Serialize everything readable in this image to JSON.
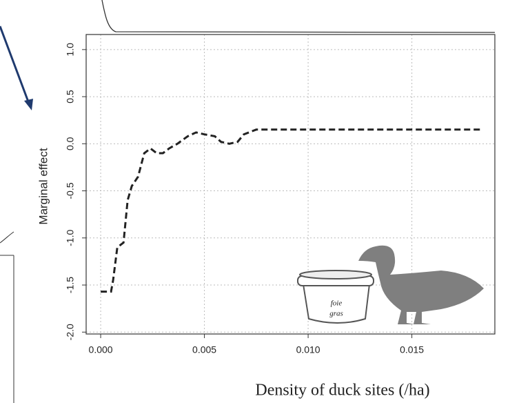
{
  "chart_data": {
    "type": "line",
    "x_label": "Density of duck sites (/ha)",
    "y_label": "Marginal effect",
    "x": [
      0.0,
      0.0005,
      0.0006,
      0.0008,
      0.0011,
      0.0013,
      0.0015,
      0.0018,
      0.0021,
      0.0024,
      0.0027,
      0.003,
      0.0033,
      0.0037,
      0.0042,
      0.0046,
      0.005,
      0.0055,
      0.0058,
      0.0062,
      0.0066,
      0.0069,
      0.0075,
      0.0183
    ],
    "values": [
      -1.57,
      -1.57,
      -1.45,
      -1.1,
      -1.05,
      -0.6,
      -0.45,
      -0.35,
      -0.1,
      -0.05,
      -0.1,
      -0.1,
      -0.05,
      0.0,
      0.08,
      0.12,
      0.1,
      0.08,
      0.02,
      0.0,
      0.02,
      0.1,
      0.15,
      0.15
    ],
    "color": "#222222",
    "xlim": [
      -0.0007,
      0.019
    ],
    "ylim": [
      -2.02,
      1.16
    ],
    "xticks": [
      {
        "value": 0,
        "label": "0.000"
      },
      {
        "value": 0.005,
        "label": "0.005"
      },
      {
        "value": 0.01,
        "label": "0.010"
      },
      {
        "value": 0.015,
        "label": "0.015"
      }
    ],
    "yticks": [
      {
        "value": -2,
        "label": "-2.0"
      },
      {
        "value": -1.5,
        "label": "-1.5"
      },
      {
        "value": -1,
        "label": "-1.0"
      },
      {
        "value": -0.5,
        "label": "-0.5"
      },
      {
        "value": 0,
        "label": "0.0"
      },
      {
        "value": 0.5,
        "label": "0.5"
      },
      {
        "value": 1,
        "label": "1.0"
      }
    ],
    "grid": true,
    "annotations": [
      "foie",
      "gras"
    ]
  }
}
